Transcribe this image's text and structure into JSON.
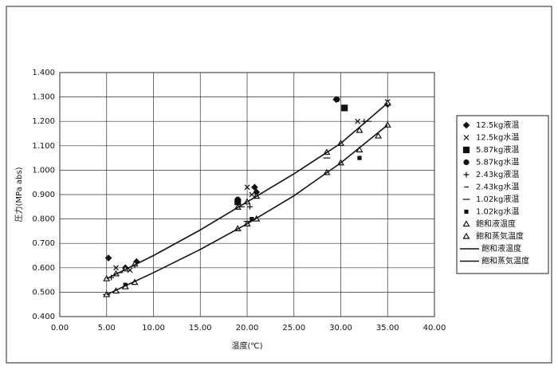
{
  "chart_data": {
    "type": "scatter",
    "x_label": "温度(℃)",
    "y_label": "圧力(MPa abs)",
    "xlim": [
      0,
      40
    ],
    "xticks": [
      {
        "value": 0,
        "label": "0.00"
      },
      {
        "value": 5,
        "label": "5.00"
      },
      {
        "value": 10,
        "label": "10.00"
      },
      {
        "value": 15,
        "label": "15.00"
      },
      {
        "value": 20,
        "label": "20.00"
      },
      {
        "value": 25,
        "label": "25.00"
      },
      {
        "value": 30,
        "label": "30.00"
      },
      {
        "value": 35,
        "label": "35.00"
      },
      {
        "value": 40,
        "label": "40.00"
      }
    ],
    "ylim": [
      0.4,
      1.4
    ],
    "yticks": [
      {
        "value": 0.4,
        "label": "0.400"
      },
      {
        "value": 0.5,
        "label": "0.500"
      },
      {
        "value": 0.6,
        "label": "0.600"
      },
      {
        "value": 0.7,
        "label": "0.700"
      },
      {
        "value": 0.8,
        "label": "0.800"
      },
      {
        "value": 0.9,
        "label": "0.900"
      },
      {
        "value": 1.0,
        "label": "1.000"
      },
      {
        "value": 1.1,
        "label": "1.100"
      },
      {
        "value": 1.2,
        "label": "1.200"
      },
      {
        "value": 1.3,
        "label": "1.300"
      },
      {
        "value": 1.4,
        "label": "1.400"
      }
    ],
    "grid": true,
    "legend": "right",
    "series": [
      {
        "name": "12.5kg液温",
        "marker": "diamond",
        "color": "#111111",
        "x": [
          5.2,
          7.0,
          8.2,
          20.8,
          21.0,
          29.5,
          35.0
        ],
        "y": [
          0.64,
          0.6,
          0.625,
          0.93,
          0.91,
          1.29,
          1.27
        ]
      },
      {
        "name": "12.5kg水温",
        "marker": "x",
        "color": "#111111",
        "x": [
          6.0,
          7.5,
          20.0,
          20.5,
          31.8,
          35.0
        ],
        "y": [
          0.6,
          0.59,
          0.93,
          0.9,
          1.2,
          1.28
        ]
      },
      {
        "name": "5.87kg液温",
        "marker": "square",
        "color": "#111111",
        "x": [
          19.0,
          30.4
        ],
        "y": [
          0.87,
          1.255
        ]
      },
      {
        "name": "5.87kg水温",
        "marker": "circle",
        "color": "#111111",
        "x": [
          19.0,
          29.6
        ],
        "y": [
          0.88,
          1.29
        ]
      },
      {
        "name": "2.43kg液温",
        "marker": "plus",
        "color": "#111111",
        "x": [
          5.5,
          8.0,
          20.3,
          32.5
        ],
        "y": [
          0.56,
          0.61,
          0.85,
          1.2
        ]
      },
      {
        "name": "2.43kg水温",
        "marker": "dash",
        "color": "#111111",
        "x": [
          6.5,
          19.5,
          33.0
        ],
        "y": [
          0.58,
          0.85,
          1.2
        ]
      },
      {
        "name": "1.02kg液温",
        "marker": "long-dash",
        "color": "#111111",
        "x": [
          5.0,
          20.0,
          28.5
        ],
        "y": [
          0.49,
          0.79,
          1.05
        ]
      },
      {
        "name": "1.02kg水温",
        "marker": "small-square",
        "color": "#111111",
        "x": [
          7.0,
          20.5,
          32.0
        ],
        "y": [
          0.53,
          0.8,
          1.05
        ]
      },
      {
        "name": "飽和液温度",
        "marker": "triangle",
        "color": "#111111",
        "x": [
          5,
          6,
          7,
          8,
          19,
          20,
          21,
          28.5,
          30,
          32,
          35
        ],
        "y": [
          0.555,
          0.575,
          0.595,
          0.615,
          0.848,
          0.87,
          0.893,
          1.073,
          1.11,
          1.163,
          1.275
        ]
      },
      {
        "name": "飽和蒸気温度",
        "marker": "triangle",
        "color": "#111111",
        "x": [
          5,
          6,
          7,
          8,
          19,
          20,
          21,
          28.5,
          30,
          32,
          34,
          35
        ],
        "y": [
          0.49,
          0.505,
          0.522,
          0.54,
          0.76,
          0.78,
          0.8,
          0.99,
          1.03,
          1.083,
          1.14,
          1.185
        ]
      },
      {
        "name": "飽和液温度",
        "marker": "line",
        "color": "#111111",
        "x": [
          5,
          10,
          15,
          20,
          25,
          30,
          35
        ],
        "y": [
          0.555,
          0.65,
          0.755,
          0.87,
          0.985,
          1.11,
          1.275
        ]
      },
      {
        "name": "飽和蒸気温度",
        "marker": "line",
        "color": "#111111",
        "x": [
          5,
          10,
          15,
          20,
          25,
          30,
          35
        ],
        "y": [
          0.49,
          0.58,
          0.675,
          0.78,
          0.895,
          1.03,
          1.185
        ]
      }
    ]
  }
}
